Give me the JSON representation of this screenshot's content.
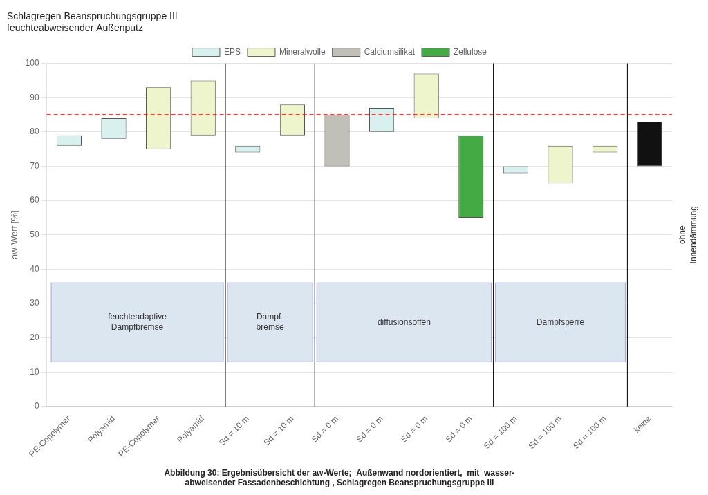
{
  "chart_data": {
    "type": "bar",
    "title": [
      "Schlagregen Beanspruchungsgruppe III",
      "feuchteabweisender Außenputz"
    ],
    "caption": [
      "Abbildung 30: Ergebnisübersicht der aw-Werte;  Außenwand nordorientiert,  mit  wasser-",
      "abweisender Fassadenbeschichtung , Schlagregen Beanspruchungsgruppe III"
    ],
    "y_label": "aw-Wert [%]",
    "categories": [
      "PE-Copolymer",
      "Polyamid",
      "PE-Copolymer",
      "Polyamid",
      "Sd = 10 m",
      "Sd = 10 m",
      "Sd = 0 m",
      "Sd = 0 m",
      "Sd = 0 m",
      "Sd = 0 m",
      "Sd = 100 m",
      "Sd = 100 m",
      "Sd = 100 m",
      "keine"
    ],
    "series": [
      {
        "name": "EPS",
        "color": "#d8f0ee",
        "values": [
          [
            76,
            79
          ],
          [
            78,
            84
          ],
          null,
          null,
          [
            74,
            76
          ],
          null,
          null,
          [
            80,
            87
          ],
          null,
          null,
          [
            68,
            70
          ],
          null,
          null,
          null
        ]
      },
      {
        "name": "Mineralwolle",
        "color": "#eef5cc",
        "values": [
          null,
          null,
          [
            75,
            93
          ],
          [
            79,
            95
          ],
          null,
          [
            79,
            88
          ],
          null,
          null,
          [
            84,
            97
          ],
          null,
          null,
          [
            65,
            76
          ],
          [
            74,
            76
          ],
          null
        ]
      },
      {
        "name": "Calciumsilikat",
        "color": "#c0c0b8",
        "values": [
          null,
          null,
          null,
          null,
          null,
          null,
          [
            70,
            85
          ],
          null,
          null,
          null,
          null,
          null,
          null,
          null
        ]
      },
      {
        "name": "Zellulose",
        "color": "#44aa44",
        "values": [
          null,
          null,
          null,
          null,
          null,
          null,
          null,
          null,
          null,
          [
            55,
            79
          ],
          null,
          null,
          null,
          null
        ]
      },
      {
        "color": "#111111",
        "values": [
          null,
          null,
          null,
          null,
          null,
          null,
          null,
          null,
          null,
          null,
          null,
          null,
          null,
          [
            70,
            83
          ]
        ]
      }
    ],
    "threshold": 85,
    "threshold_color": "#ff0000",
    "groups": [
      {
        "label": "feuchteadaptive\nDampfbremse",
        "count": 4
      },
      {
        "label": "Dampf-\nbremse",
        "count": 2
      },
      {
        "label": "diffusionsoffen",
        "count": 4
      },
      {
        "label": "Dampfsperre",
        "count": 3
      }
    ],
    "side_label": "ohne\nInnendämmung",
    "ylim": [
      0,
      100
    ],
    "yticks": [
      0,
      10,
      20,
      30,
      40,
      50,
      60,
      70,
      80,
      90,
      100
    ],
    "grid": true,
    "legend": "top"
  }
}
